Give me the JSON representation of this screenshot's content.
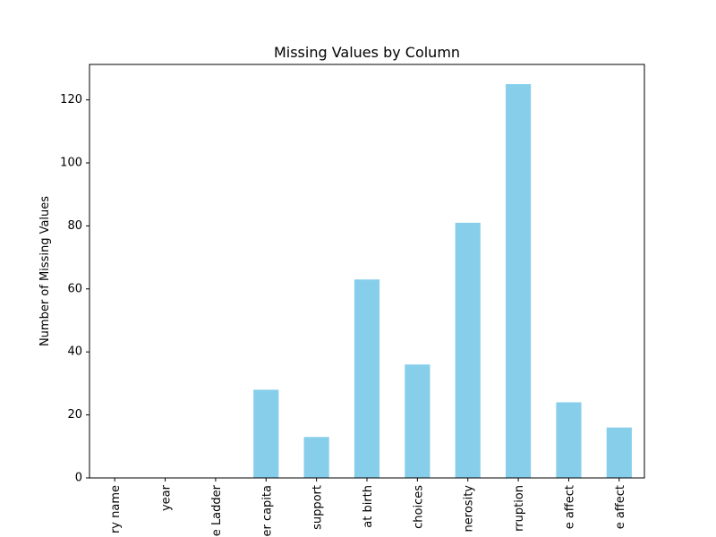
{
  "chart_data": {
    "type": "bar",
    "title": "Missing Values by Column",
    "xlabel": "",
    "ylabel": "Number of Missing Values",
    "categories": [
      "ry name",
      "year",
      "e Ladder",
      "er capita",
      "support",
      "at birth",
      "choices",
      "nerosity",
      "rruption",
      "e affect",
      "e affect"
    ],
    "values": [
      0,
      0,
      0,
      28,
      13,
      63,
      36,
      81,
      125,
      24,
      16
    ],
    "ylim": [
      0,
      131.25
    ],
    "yticks": [
      0,
      20,
      40,
      60,
      80,
      100,
      120
    ],
    "bar_color": "#87CEEB",
    "grid": false,
    "legend": "none"
  }
}
